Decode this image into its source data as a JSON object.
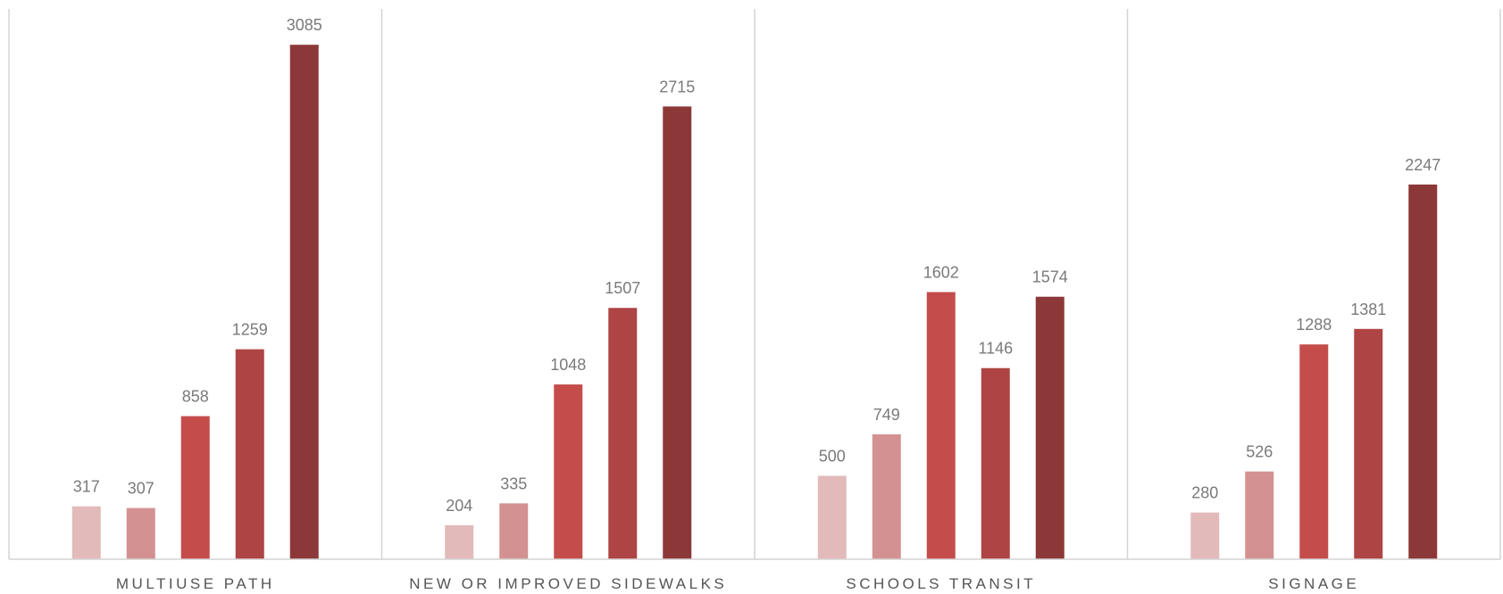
{
  "chart_data": {
    "type": "bar",
    "title": "",
    "xlabel": "",
    "ylabel": "",
    "ylim": [
      0,
      3300
    ],
    "grid": false,
    "legend": "none",
    "categories": [
      "MULTIUSE PATH",
      "NEW OR IMPROVED SIDEWALKS",
      "SCHOOLS TRANSIT",
      "SIGNAGE"
    ],
    "series": [
      {
        "color": "#e2baba",
        "values": [
          317,
          204,
          500,
          280
        ]
      },
      {
        "color": "#d39192",
        "values": [
          307,
          335,
          749,
          526
        ]
      },
      {
        "color": "#c44d4c",
        "values": [
          858,
          1048,
          1602,
          1288
        ]
      },
      {
        "color": "#ae4443",
        "values": [
          1259,
          1507,
          1146,
          1381
        ]
      },
      {
        "color": "#8d3838",
        "values": [
          3085,
          2715,
          1574,
          2247
        ]
      }
    ]
  }
}
